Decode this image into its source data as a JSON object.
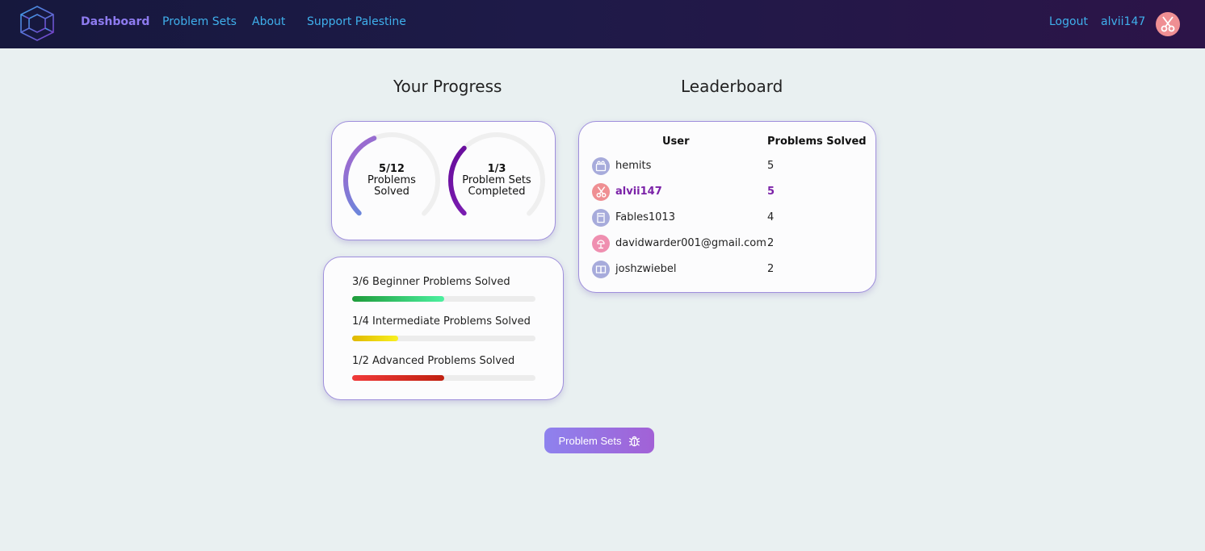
{
  "nav": {
    "links": [
      {
        "label": "Dashboard",
        "active": true
      },
      {
        "label": "Problem Sets",
        "active": false
      },
      {
        "label": "About",
        "active": false
      },
      {
        "label": "Support Palestine",
        "active": false
      }
    ],
    "logout_label": "Logout",
    "username": "alvii147",
    "avatar_icon": "scissors-icon"
  },
  "progress": {
    "heading": "Your Progress",
    "rings": [
      {
        "value": "5/12",
        "label_line1": "Problems",
        "label_line2": "Solved",
        "fraction": 0.4167,
        "colors": [
          "#3fa0e6",
          "#9a6bd0"
        ]
      },
      {
        "value": "1/3",
        "label_line1": "Problem Sets",
        "label_line2": "Completed",
        "fraction": 0.3333,
        "colors": [
          "#8a2bc4",
          "#6a0f9e"
        ]
      }
    ],
    "bars": [
      {
        "label": "3/6 Beginner Problems Solved",
        "fraction": 0.5,
        "colors": [
          "#1e9b3a",
          "#4cf0a0"
        ]
      },
      {
        "label": "1/4 Intermediate Problems Solved",
        "fraction": 0.25,
        "colors": [
          "#e0b800",
          "#f8f020"
        ]
      },
      {
        "label": "1/2 Advanced Problems Solved",
        "fraction": 0.5,
        "colors": [
          "#f03a3a",
          "#c02010"
        ]
      }
    ]
  },
  "leaderboard": {
    "heading": "Leaderboard",
    "columns": [
      "User",
      "Problems Solved"
    ],
    "rows": [
      {
        "user": "hemits",
        "solved": "5",
        "avatar_icon": "film-icon",
        "avatar_color": "#a7abdb",
        "is_current": false
      },
      {
        "user": "alvii147",
        "solved": "5",
        "avatar_icon": "scissors-icon",
        "avatar_color": "#ef8f93",
        "is_current": true
      },
      {
        "user": "Fables1013",
        "solved": "4",
        "avatar_icon": "sd-card-icon",
        "avatar_color": "#a7abdb",
        "is_current": false
      },
      {
        "user": "davidwarder001@gmail.com",
        "solved": "2",
        "avatar_icon": "lamp-icon",
        "avatar_color": "#ef8fb0",
        "is_current": false
      },
      {
        "user": "joshzwiebel",
        "solved": "2",
        "avatar_icon": "book-icon",
        "avatar_color": "#a7abdb",
        "is_current": false
      }
    ]
  },
  "cta": {
    "label": "Problem Sets",
    "icon": "bug-icon"
  }
}
